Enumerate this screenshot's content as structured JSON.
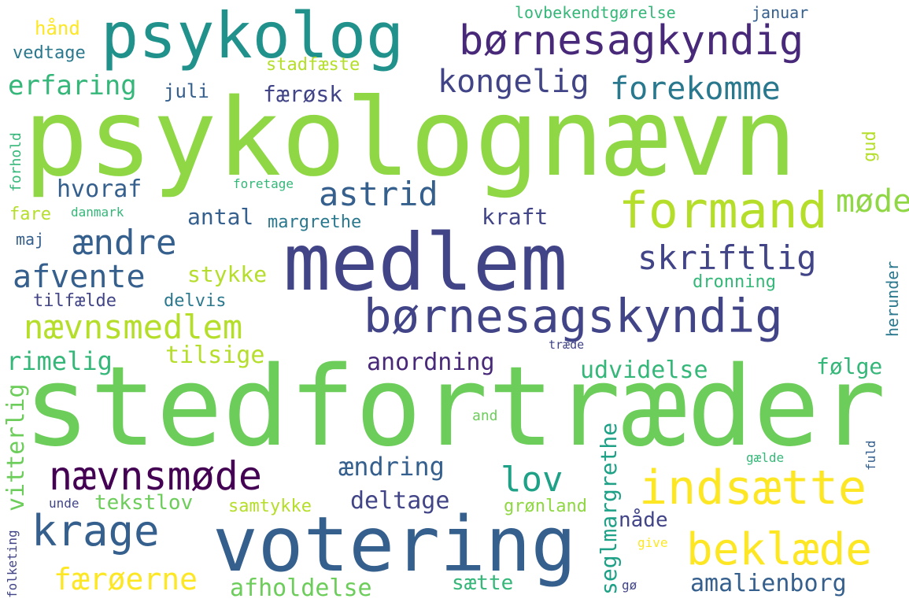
{
  "palette": {
    "yellow": "#fde725",
    "yellow_green": "#b5de2b",
    "lime": "#8fd744",
    "green": "#6ccd5a",
    "sea_green": "#35b779",
    "teal_green": "#1fa187",
    "teal": "#21918c",
    "cyan_blue": "#2a788e",
    "blue": "#355f8d",
    "indigo": "#414487",
    "purple": "#482878",
    "dark_purple": "#440154"
  },
  "words": [
    {
      "text": "psykolognævn",
      "color": "lime"
    },
    {
      "text": "stedfortræder",
      "color": "green"
    },
    {
      "text": "medlem",
      "color": "indigo"
    },
    {
      "text": "votering",
      "color": "blue"
    },
    {
      "text": "psykolog",
      "color": "teal"
    },
    {
      "text": "børnesagkyndig",
      "color": "purple"
    },
    {
      "text": "børnesagskyndig",
      "color": "indigo"
    },
    {
      "text": "formand",
      "color": "yellow_green"
    },
    {
      "text": "nævnsmedlem",
      "color": "yellow_green"
    },
    {
      "text": "nævnsmøde",
      "color": "dark_purple"
    },
    {
      "text": "indsætte",
      "color": "yellow"
    },
    {
      "text": "beklæde",
      "color": "yellow"
    },
    {
      "text": "krage",
      "color": "blue"
    },
    {
      "text": "astrid",
      "color": "blue"
    },
    {
      "text": "ændre",
      "color": "blue"
    },
    {
      "text": "afvente",
      "color": "blue"
    },
    {
      "text": "skriftlig",
      "color": "indigo"
    },
    {
      "text": "kongelig",
      "color": "indigo"
    },
    {
      "text": "forekomme",
      "color": "cyan_blue"
    },
    {
      "text": "erfaring",
      "color": "sea_green"
    },
    {
      "text": "lov",
      "color": "teal_green"
    },
    {
      "text": "møde",
      "color": "lime"
    },
    {
      "text": "færøerne",
      "color": "yellow"
    },
    {
      "text": "afholdelse",
      "color": "green"
    },
    {
      "text": "amalienborg",
      "color": "blue"
    },
    {
      "text": "ændring",
      "color": "blue"
    },
    {
      "text": "deltage",
      "color": "indigo"
    },
    {
      "text": "anordning",
      "color": "purple"
    },
    {
      "text": "udvidelse",
      "color": "sea_green"
    },
    {
      "text": "følge",
      "color": "sea_green"
    },
    {
      "text": "rimelig",
      "color": "sea_green"
    },
    {
      "text": "tilsige",
      "color": "yellow_green"
    },
    {
      "text": "stykke",
      "color": "yellow_green"
    },
    {
      "text": "hvoraf",
      "color": "blue"
    },
    {
      "text": "antal",
      "color": "blue"
    },
    {
      "text": "kraft",
      "color": "indigo"
    },
    {
      "text": "færøsk",
      "color": "indigo"
    },
    {
      "text": "tekstlov",
      "color": "green"
    },
    {
      "text": "sætte",
      "color": "sea_green"
    },
    {
      "text": "nåde",
      "color": "indigo"
    },
    {
      "text": "grønland",
      "color": "lime"
    },
    {
      "text": "samtykke",
      "color": "yellow_green"
    },
    {
      "text": "stadfæste",
      "color": "yellow_green"
    },
    {
      "text": "juli",
      "color": "blue"
    },
    {
      "text": "vedtage",
      "color": "cyan_blue"
    },
    {
      "text": "hånd",
      "color": "yellow"
    },
    {
      "text": "lovbekendtgørelse",
      "color": "sea_green"
    },
    {
      "text": "januar",
      "color": "blue"
    },
    {
      "text": "margrethe",
      "color": "cyan_blue"
    },
    {
      "text": "dronning",
      "color": "sea_green"
    },
    {
      "text": "fare",
      "color": "yellow_green"
    },
    {
      "text": "danmark",
      "color": "sea_green"
    },
    {
      "text": "maj",
      "color": "blue"
    },
    {
      "text": "tilfælde",
      "color": "indigo"
    },
    {
      "text": "delvis",
      "color": "cyan_blue"
    },
    {
      "text": "foretage",
      "color": "sea_green"
    },
    {
      "text": "unde",
      "color": "indigo"
    },
    {
      "text": "træde",
      "color": "indigo"
    },
    {
      "text": "and",
      "color": "green"
    },
    {
      "text": "gælde",
      "color": "sea_green"
    },
    {
      "text": "give",
      "color": "yellow"
    },
    {
      "text": "gø",
      "color": "indigo"
    },
    {
      "text": "vitterlig",
      "color": "green"
    },
    {
      "text": "seglmargrethe",
      "color": "teal_green"
    },
    {
      "text": "herunder",
      "color": "cyan_blue"
    },
    {
      "text": "gud",
      "color": "yellow_green"
    },
    {
      "text": "forhold",
      "color": "sea_green"
    },
    {
      "text": "folketing",
      "color": "indigo"
    },
    {
      "text": "fuld",
      "color": "blue"
    }
  ]
}
